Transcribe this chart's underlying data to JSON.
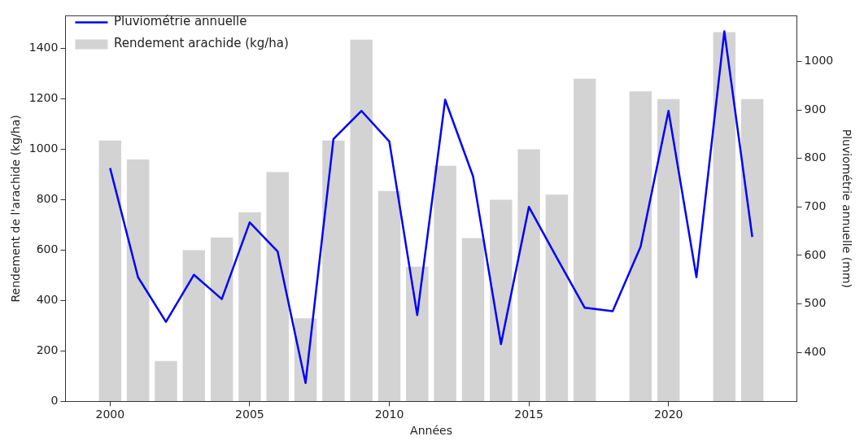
{
  "chart_data": {
    "type": "bar",
    "xlabel": "Années",
    "ylabel": "Rendement de l'arachide (kg/ha)",
    "y2label": "Pluviométrie annuelle (mm)",
    "x": [
      2000,
      2001,
      2002,
      2003,
      2004,
      2005,
      2006,
      2007,
      2008,
      2009,
      2010,
      2011,
      2012,
      2013,
      2014,
      2015,
      2016,
      2017,
      2018,
      2019,
      2020,
      2021,
      2022,
      2023
    ],
    "series": [
      {
        "name": "Rendement arachide (kg/ha)",
        "color": "#d3d3d3",
        "values": [
          1035,
          960,
          160,
          600,
          650,
          750,
          910,
          330,
          1035,
          1435,
          835,
          535,
          935,
          648,
          800,
          1000,
          820,
          1280,
          null,
          1230,
          1200,
          null,
          1465,
          1200
        ]
      },
      {
        "name": "Pluviométrie annuelle",
        "type": "line",
        "axis": "y2",
        "color": "#0000ff",
        "values": [
          780,
          555,
          463,
          560,
          510,
          668,
          608,
          337,
          840,
          898,
          835,
          477,
          921,
          763,
          417,
          700,
          595,
          492,
          485,
          618,
          898,
          555,
          1062,
          638
        ]
      }
    ],
    "xlim": [
      1998.4,
      2024.6
    ],
    "xticks": [
      2000,
      2005,
      2010,
      2015,
      2020
    ],
    "ylim": [
      0,
      1530
    ],
    "yticks": [
      0,
      200,
      400,
      600,
      800,
      1000,
      1200,
      1400
    ],
    "y2lim": [
      299,
      1094
    ],
    "y2ticks": [
      400,
      500,
      600,
      700,
      800,
      900,
      1000
    ],
    "legend": "top left",
    "grid": false,
    "marker": "none",
    "line_style": "solid"
  }
}
